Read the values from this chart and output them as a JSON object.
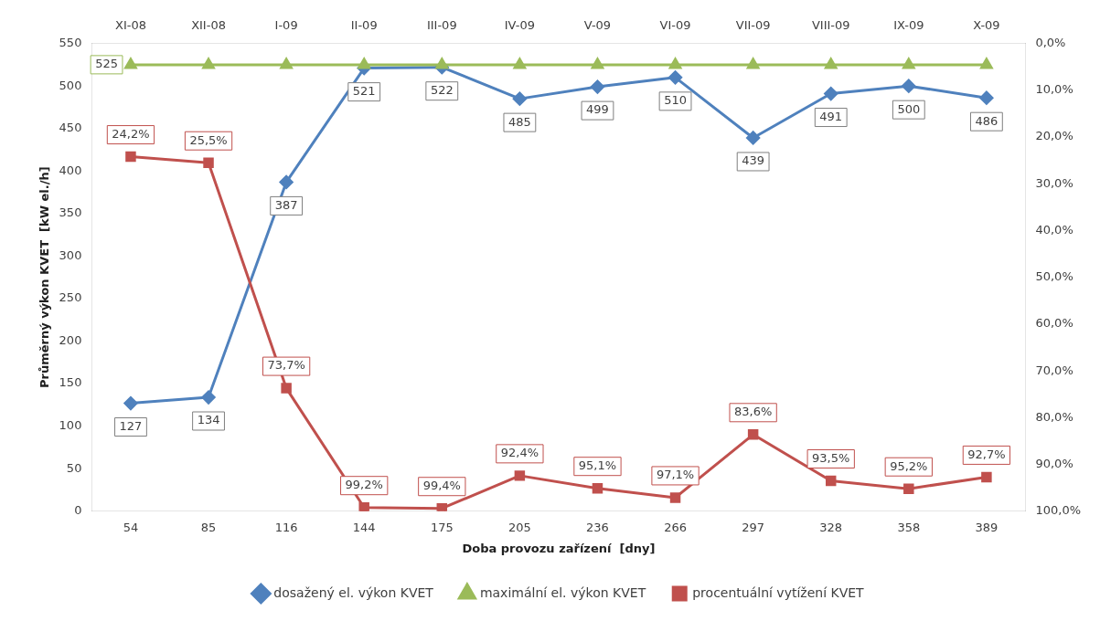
{
  "chart_data": {
    "type": "line",
    "xlabel": "Doba provozu zařízení  [dny]",
    "ylabel": "Průměrný výkon KVET  [kW el./h]",
    "categories": [
      "54",
      "85",
      "116",
      "144",
      "175",
      "205",
      "236",
      "266",
      "297",
      "328",
      "358",
      "389"
    ],
    "annotations": [
      "XI-08",
      "XII-08",
      "I-09",
      "II-09",
      "III-09",
      "IV-09",
      "V-09",
      "VI-09",
      "VII-09",
      "VIII-09",
      "IX-09",
      "X-09"
    ],
    "ylim": [
      0,
      550
    ],
    "yticks": [
      0,
      50,
      100,
      150,
      200,
      250,
      300,
      350,
      400,
      450,
      500,
      550
    ],
    "y2lim": [
      100,
      0
    ],
    "y2ticks": [
      {
        "value": 0,
        "label": "0,0%"
      },
      {
        "value": 10,
        "label": "10,0%"
      },
      {
        "value": 20,
        "label": "20,0%"
      },
      {
        "value": 30,
        "label": "30,0%"
      },
      {
        "value": 40,
        "label": "40,0%"
      },
      {
        "value": 50,
        "label": "50,0%"
      },
      {
        "value": 60,
        "label": "60,0%"
      },
      {
        "value": 70,
        "label": "70,0%"
      },
      {
        "value": 80,
        "label": "80,0%"
      },
      {
        "value": 90,
        "label": "90,0%"
      },
      {
        "value": 100,
        "label": "100,0%"
      }
    ],
    "grid": false,
    "legend": "bottom",
    "series": [
      {
        "name": "dosažený el. výkon KVET",
        "color": "#4f81bd",
        "marker": "diamond",
        "values": [
          127,
          134,
          387,
          521,
          522,
          485,
          499,
          510,
          439,
          491,
          500,
          486
        ],
        "value_labels": [
          "127",
          "134",
          "387",
          "521",
          "522",
          "485",
          "499",
          "510",
          "439",
          "491",
          "500",
          "486"
        ]
      },
      {
        "name": "maximální el. výkon KVET",
        "color": "#9bbb59",
        "marker": "triangle",
        "values": [
          525,
          525,
          525,
          525,
          525,
          525,
          525,
          525,
          525,
          525,
          525,
          525
        ],
        "value_labels": [
          "525",
          null,
          null,
          null,
          null,
          null,
          null,
          null,
          null,
          null,
          null,
          null
        ]
      },
      {
        "name": "procentuální vytížení KVET",
        "color": "#c0504d",
        "marker": "square",
        "axis": "y2",
        "values": [
          24.2,
          25.5,
          73.7,
          99.2,
          99.4,
          92.4,
          95.1,
          97.1,
          83.6,
          93.5,
          95.2,
          92.7
        ],
        "value_labels": [
          "24,2%",
          "25,5%",
          "73,7%",
          "99,2%",
          "99,4%",
          "92,4%",
          "95,1%",
          "97,1%",
          "83,6%",
          "93,5%",
          "95,2%",
          "92,7%"
        ]
      }
    ]
  }
}
